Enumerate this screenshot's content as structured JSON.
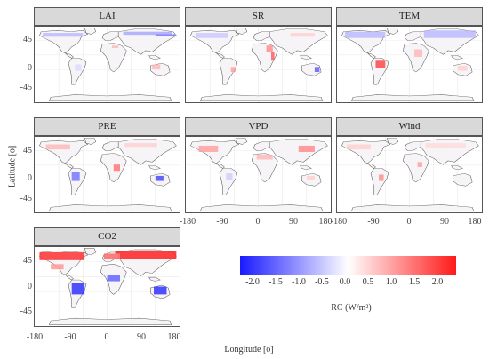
{
  "panels": [
    {
      "id": "lai",
      "title": "LAI"
    },
    {
      "id": "sr",
      "title": "SR"
    },
    {
      "id": "tem",
      "title": "TEM"
    },
    {
      "id": "pre",
      "title": "PRE"
    },
    {
      "id": "vpd",
      "title": "VPD"
    },
    {
      "id": "wind",
      "title": "Wind"
    },
    {
      "id": "co2",
      "title": "CO2"
    }
  ],
  "axes": {
    "y_title": "Latitude [o]",
    "x_title": "Longitude [o]",
    "lat_ticks": [
      "45",
      "0",
      "-45"
    ],
    "lon_ticks": [
      "-180",
      "-90",
      "0",
      "90",
      "180"
    ]
  },
  "legend": {
    "title": "RC (W/m²)",
    "ticks": [
      "-2.0",
      "-1.5",
      "-1.0",
      "-0.5",
      "0.0",
      "0.5",
      "1.0",
      "1.5",
      "2.0"
    ],
    "low_color": "#1a1aff",
    "mid_color": "#ffffff",
    "high_color": "#ff1a1a"
  }
}
